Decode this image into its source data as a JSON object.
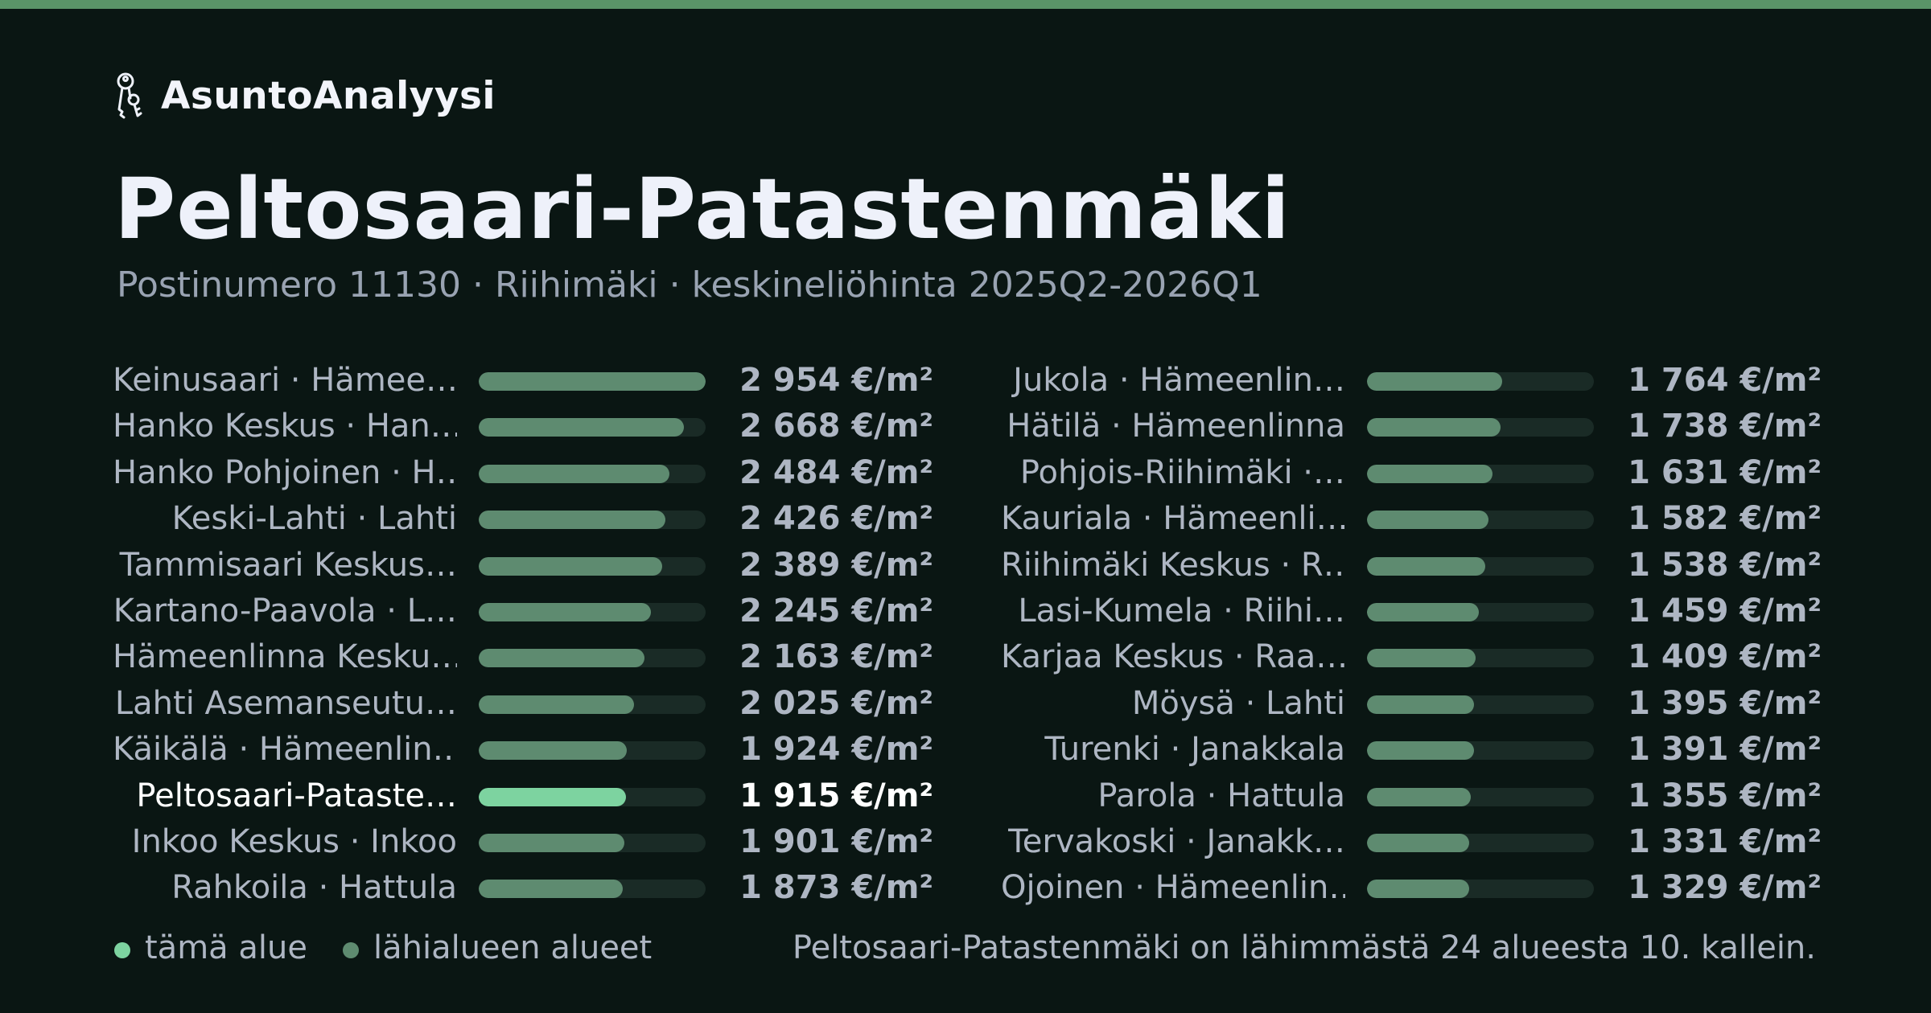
{
  "colors": {
    "background": "#0a1613",
    "accent_bar": "#5a9468",
    "current_bar": "#7dd3a0",
    "neighbor_bar": "#5e8b70",
    "track": "#1a2b26"
  },
  "brand": {
    "icon": "keys-icon",
    "name": "AsuntoAnalyysi"
  },
  "header": {
    "title": "Peltosaari-Patastenmäki",
    "subtitle": "Postinumero 11130 · Riihimäki · keskineliöhinta 2025Q2-2026Q1"
  },
  "legend": {
    "current_label": "tämä alue",
    "neighbors_label": "lähialueen alueet"
  },
  "footnote": "Peltosaari-Patastenmäki on lähimmästä 24 alueesta 10. kallein.",
  "chart_data": {
    "type": "bar",
    "orientation": "horizontal",
    "unit": "€/m²",
    "max_value": 2954,
    "left_column": [
      {
        "label": "Keinusaari · Hämee…",
        "value": 2954,
        "value_label": "2 954 €/m²",
        "current": false
      },
      {
        "label": "Hanko Keskus · Han…",
        "value": 2668,
        "value_label": "2 668 €/m²",
        "current": false
      },
      {
        "label": "Hanko Pohjoinen · H…",
        "value": 2484,
        "value_label": "2 484 €/m²",
        "current": false
      },
      {
        "label": "Keski-Lahti · Lahti",
        "value": 2426,
        "value_label": "2 426 €/m²",
        "current": false
      },
      {
        "label": "Tammisaari Keskus…",
        "value": 2389,
        "value_label": "2 389 €/m²",
        "current": false
      },
      {
        "label": "Kartano-Paavola · L…",
        "value": 2245,
        "value_label": "2 245 €/m²",
        "current": false
      },
      {
        "label": "Hämeenlinna Kesku…",
        "value": 2163,
        "value_label": "2 163 €/m²",
        "current": false
      },
      {
        "label": "Lahti Asemanseutu…",
        "value": 2025,
        "value_label": "2 025 €/m²",
        "current": false
      },
      {
        "label": "Käikälä · Hämeenlin…",
        "value": 1924,
        "value_label": "1 924 €/m²",
        "current": false
      },
      {
        "label": "Peltosaari-Pataste…",
        "value": 1915,
        "value_label": "1 915 €/m²",
        "current": true
      },
      {
        "label": "Inkoo Keskus · Inkoo",
        "value": 1901,
        "value_label": "1 901 €/m²",
        "current": false
      },
      {
        "label": "Rahkoila · Hattula",
        "value": 1873,
        "value_label": "1 873 €/m²",
        "current": false
      }
    ],
    "right_column": [
      {
        "label": "Jukola · Hämeenlin…",
        "value": 1764,
        "value_label": "1 764 €/m²",
        "current": false
      },
      {
        "label": "Hätilä · Hämeenlinna",
        "value": 1738,
        "value_label": "1 738 €/m²",
        "current": false
      },
      {
        "label": "Pohjois-Riihimäki ·…",
        "value": 1631,
        "value_label": "1 631 €/m²",
        "current": false
      },
      {
        "label": "Kauriala · Hämeenli…",
        "value": 1582,
        "value_label": "1 582 €/m²",
        "current": false
      },
      {
        "label": "Riihimäki Keskus · R…",
        "value": 1538,
        "value_label": "1 538 €/m²",
        "current": false
      },
      {
        "label": "Lasi-Kumela · Riihi…",
        "value": 1459,
        "value_label": "1 459 €/m²",
        "current": false
      },
      {
        "label": "Karjaa Keskus · Raa…",
        "value": 1409,
        "value_label": "1 409 €/m²",
        "current": false
      },
      {
        "label": "Möysä · Lahti",
        "value": 1395,
        "value_label": "1 395 €/m²",
        "current": false
      },
      {
        "label": "Turenki · Janakkala",
        "value": 1391,
        "value_label": "1 391 €/m²",
        "current": false
      },
      {
        "label": "Parola · Hattula",
        "value": 1355,
        "value_label": "1 355 €/m²",
        "current": false
      },
      {
        "label": "Tervakoski · Janakk…",
        "value": 1331,
        "value_label": "1 331 €/m²",
        "current": false
      },
      {
        "label": "Ojoinen · Hämeenlin…",
        "value": 1329,
        "value_label": "1 329 €/m²",
        "current": false
      }
    ]
  }
}
